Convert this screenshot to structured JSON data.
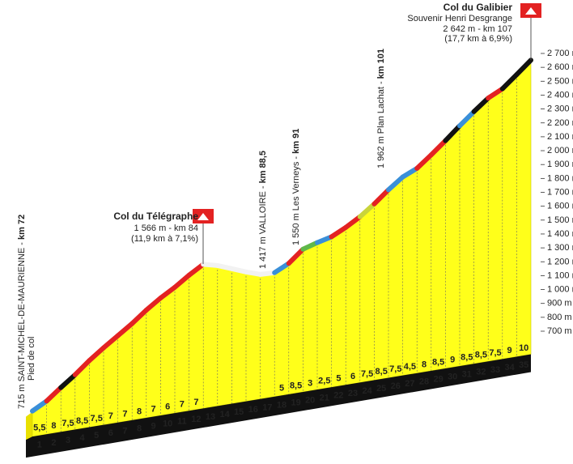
{
  "chart_data": {
    "type": "profile",
    "categories": [
      1,
      2,
      3,
      4,
      5,
      6,
      7,
      8,
      9,
      10,
      11,
      12,
      13,
      14,
      15,
      16,
      17,
      18,
      19,
      20,
      21,
      22,
      23,
      24,
      25,
      26,
      27,
      28,
      29,
      30,
      31,
      32,
      33,
      34,
      35
    ],
    "gradients": [
      "5,5",
      "8",
      "7,5",
      "8,5",
      "7,5",
      "7",
      "7",
      "8",
      "7",
      "6",
      "7",
      "7",
      null,
      null,
      null,
      null,
      null,
      "5",
      "8,5",
      "3",
      "2,5",
      "5",
      "6",
      "7,5",
      "8,5",
      "7,5",
      "4,5",
      "8",
      "8,5",
      "9",
      "8,5",
      "8,5",
      "7,5",
      "9",
      "10"
    ],
    "elevations": [
      715,
      770,
      850,
      925,
      1010,
      1085,
      1155,
      1225,
      1305,
      1375,
      1435,
      1505,
      1566,
      1540,
      1500,
      1460,
      1425,
      1420,
      1470,
      1555,
      1585,
      1610,
      1660,
      1720,
      1795,
      1880,
      1955,
      2000,
      2080,
      2165,
      2255,
      2340,
      2420,
      2470,
      2555,
      2642
    ],
    "segment_colors": [
      "#3a8fd8",
      "#e32222",
      "#111111",
      "#e32222",
      "#e32222",
      "#e32222",
      "#e32222",
      "#e32222",
      "#e32222",
      "#e32222",
      "#e32222",
      "#e32222",
      "#f2f2f2",
      "#f2f2f2",
      "#f2f2f2",
      "#f2f2f2",
      "#f2f2f2",
      "#3a8fd8",
      "#e32222",
      "#5fb84a",
      "#3a8fd8",
      "#e32222",
      "#e32222",
      "#c9d43a",
      "#e32222",
      "#3a8fd8",
      "#3a8fd8",
      "#e32222",
      "#e32222",
      "#111111",
      "#3a8fd8",
      "#111111",
      "#e32222",
      "#111111",
      "#111111"
    ],
    "ylim": [
      700,
      2700
    ],
    "yticks": [
      {
        "value": 700,
        "label": "700 m"
      },
      {
        "value": 800,
        "label": "800 m"
      },
      {
        "value": 900,
        "label": "900 m"
      },
      {
        "value": 1000,
        "label": "1 000 m"
      },
      {
        "value": 1100,
        "label": "1 100 m"
      },
      {
        "value": 1200,
        "label": "1 200 m"
      },
      {
        "value": 1300,
        "label": "1 300 m"
      },
      {
        "value": 1400,
        "label": "1 400 m"
      },
      {
        "value": 1500,
        "label": "1 500 m"
      },
      {
        "value": 1600,
        "label": "1 600 m"
      },
      {
        "value": 1700,
        "label": "1 700 m"
      },
      {
        "value": 1800,
        "label": "1 800 m"
      },
      {
        "value": 1900,
        "label": "1 900 m"
      },
      {
        "value": 2000,
        "label": "2 000 m"
      },
      {
        "value": 2100,
        "label": "2 100 m"
      },
      {
        "value": 2200,
        "label": "2 200 m"
      },
      {
        "value": 2300,
        "label": "2 300 m"
      },
      {
        "value": 2400,
        "label": "2 400 m"
      },
      {
        "value": 2500,
        "label": "2 500 m"
      },
      {
        "value": 2600,
        "label": "2 600 m"
      },
      {
        "value": 2700,
        "label": "2 700 m"
      }
    ],
    "annotations": {
      "start": {
        "text": "715 m SAINT-MICHEL-DE-MAURIENNE - ",
        "km": "km 72",
        "note": "Pied de col"
      },
      "valloire": {
        "text": "1 417 m VALLOIRE - ",
        "km": "km 88,5"
      },
      "verneys": {
        "text": "1 550 m Les Verneys - ",
        "km": "km 91"
      },
      "plan_lachat": {
        "text": "1 962 m Plan Lachat - ",
        "km": "km 101"
      },
      "telegraphe": {
        "name": "Col du Télégraphe",
        "line1": "1 566 m - km 84",
        "line2": "(11,9 km à 7,1%)"
      },
      "galibier": {
        "name": "Col du Galibier",
        "subtitle": "Souvenir Henri Desgrange",
        "line1": "2 642 m - km 107",
        "line2": "(17,7 km à 6,9%)"
      }
    }
  }
}
